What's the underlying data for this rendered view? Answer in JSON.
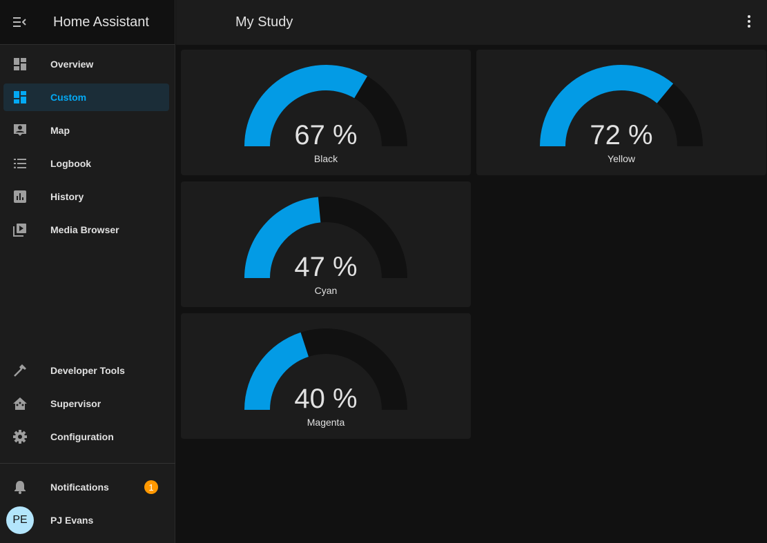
{
  "app": {
    "title": "Home Assistant"
  },
  "sidebar": {
    "items": [
      {
        "label": "Overview",
        "icon": "view-dashboard-icon"
      },
      {
        "label": "Custom",
        "icon": "view-dashboard-icon",
        "active": true
      },
      {
        "label": "Map",
        "icon": "map-account-icon"
      },
      {
        "label": "Logbook",
        "icon": "format-list-icon"
      },
      {
        "label": "History",
        "icon": "chart-box-icon"
      },
      {
        "label": "Media Browser",
        "icon": "play-box-multiple-icon"
      },
      {
        "label": "Developer Tools",
        "icon": "hammer-icon"
      },
      {
        "label": "Supervisor",
        "icon": "home-assistant-icon"
      },
      {
        "label": "Configuration",
        "icon": "cog-icon"
      }
    ],
    "notifications": {
      "label": "Notifications",
      "count": "1"
    },
    "user": {
      "initials": "PE",
      "name": "PJ Evans"
    }
  },
  "header": {
    "title": "My Study"
  },
  "colors": {
    "accent": "#03a9f4",
    "gauge_fill": "#039be5",
    "gauge_bg": "#111111"
  },
  "gauges": [
    {
      "value": 67,
      "display": "67 %",
      "name": "Black"
    },
    {
      "value": 72,
      "display": "72 %",
      "name": "Yellow"
    },
    {
      "value": 47,
      "display": "47 %",
      "name": "Cyan"
    },
    {
      "value": 40,
      "display": "40 %",
      "name": "Magenta"
    }
  ]
}
